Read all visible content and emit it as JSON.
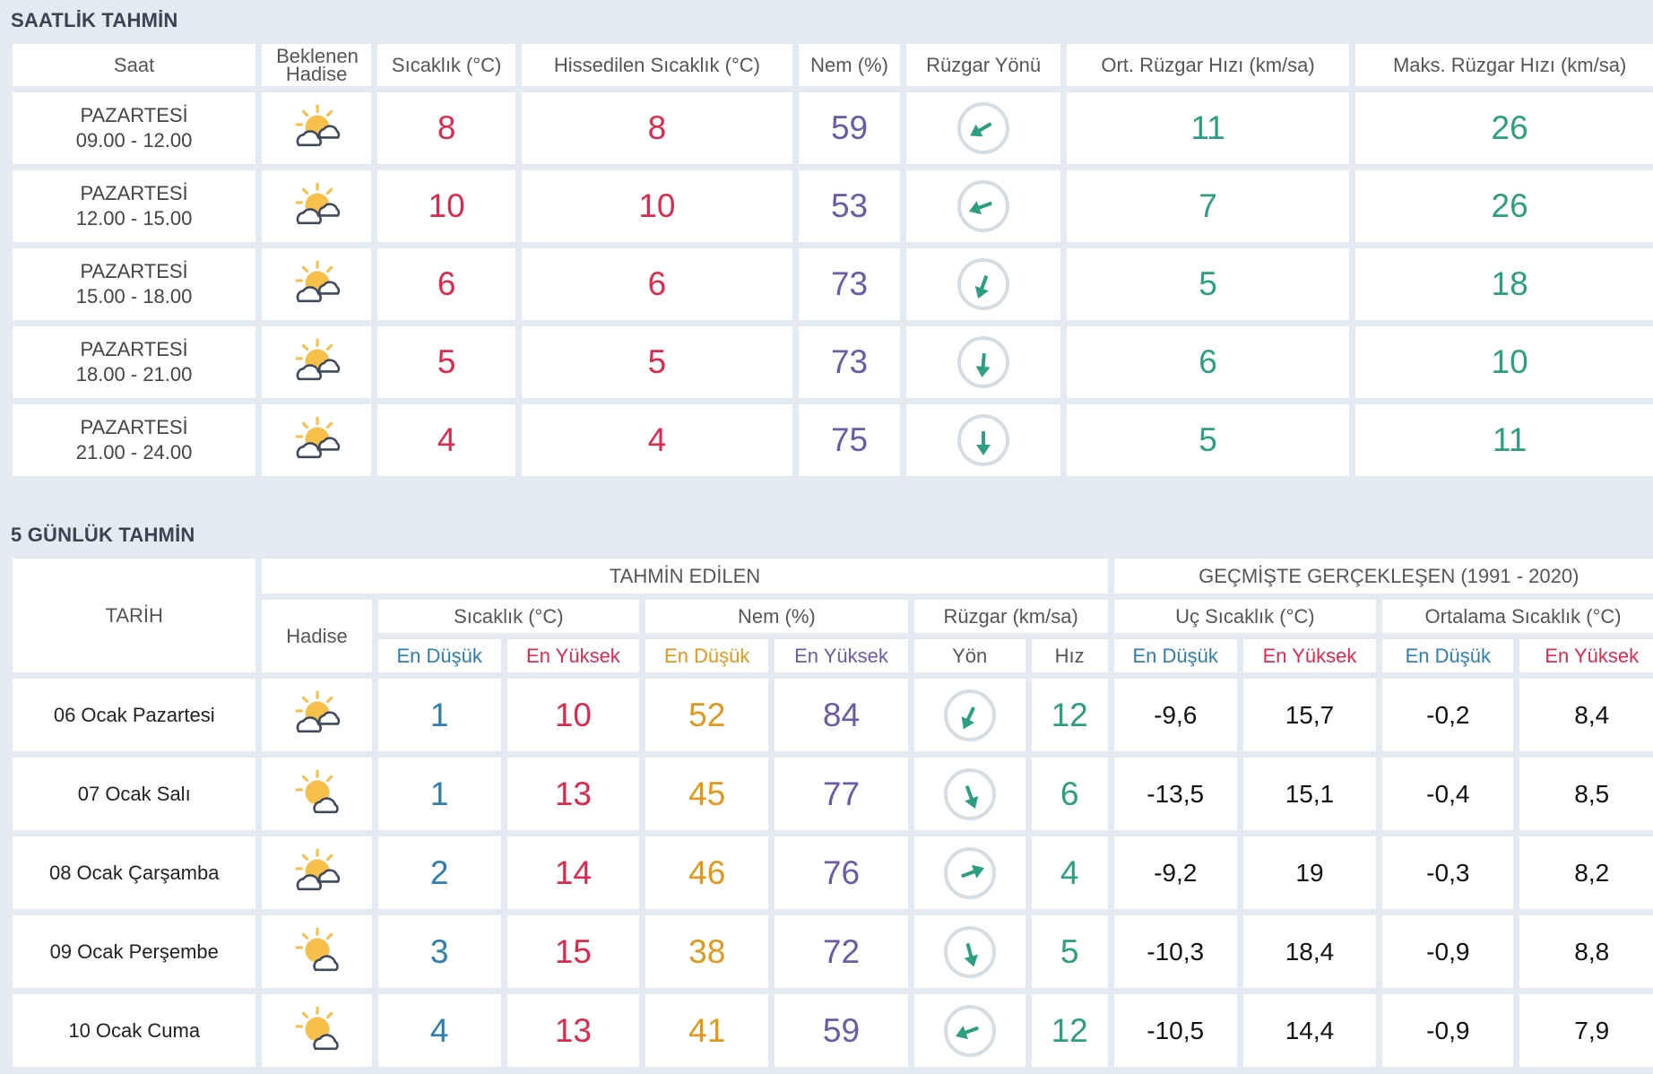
{
  "hourly": {
    "title": "SAATLİK TAHMİN",
    "headers": {
      "saat": "Saat",
      "hadise": "Beklenen Hadise",
      "sicaklik": "Sıcaklık (°C)",
      "hissedilen": "Hissedilen Sıcaklık (°C)",
      "nem": "Nem (%)",
      "ruzgar_yonu": "Rüzgar Yönü",
      "ort_ruzgar": "Ort. Rüzgar Hızı (km/sa)",
      "maks_ruzgar": "Maks. Rüzgar Hızı (km/sa)"
    },
    "rows": [
      {
        "day": "PAZARTESİ",
        "time": "09.00 - 12.00",
        "icon": "partly-cloudy-icon",
        "temp": "8",
        "feels": "8",
        "humidity": "59",
        "wind_dir_deg": 240,
        "wind_avg": "11",
        "wind_max": "26"
      },
      {
        "day": "PAZARTESİ",
        "time": "12.00 - 15.00",
        "icon": "partly-cloudy-icon",
        "temp": "10",
        "feels": "10",
        "humidity": "53",
        "wind_dir_deg": 250,
        "wind_avg": "7",
        "wind_max": "26"
      },
      {
        "day": "PAZARTESİ",
        "time": "15.00 - 18.00",
        "icon": "partly-cloudy-icon",
        "temp": "6",
        "feels": "6",
        "humidity": "73",
        "wind_dir_deg": 200,
        "wind_avg": "5",
        "wind_max": "18"
      },
      {
        "day": "PAZARTESİ",
        "time": "18.00 - 21.00",
        "icon": "partly-cloudy-icon",
        "temp": "5",
        "feels": "5",
        "humidity": "73",
        "wind_dir_deg": 185,
        "wind_avg": "6",
        "wind_max": "10"
      },
      {
        "day": "PAZARTESİ",
        "time": "21.00 - 24.00",
        "icon": "partly-cloudy-icon",
        "temp": "4",
        "feels": "4",
        "humidity": "75",
        "wind_dir_deg": 180,
        "wind_avg": "5",
        "wind_max": "11"
      }
    ]
  },
  "daily": {
    "title": "5 GÜNLÜK TAHMİN",
    "headers": {
      "tarih": "TARİH",
      "tahmin": "TAHMİN EDİLEN",
      "gecmis": "GEÇMİŞTE GERÇEKLEŞEN (1991 - 2020)",
      "hadise": "Hadise",
      "sicaklik": "Sıcaklık (°C)",
      "nem": "Nem (%)",
      "ruzgar": "Rüzgar (km/sa)",
      "uc_sicaklik": "Uç Sıcaklık (°C)",
      "ort_sicaklik": "Ortalama Sıcaklık (°C)",
      "en_dusuk": "En Düşük",
      "en_yuksek": "En Yüksek",
      "yon": "Yön",
      "hiz": "Hız"
    },
    "rows": [
      {
        "date": "06 Ocak Pazartesi",
        "icon": "partly-cloudy-icon",
        "tmin": "1",
        "tmax": "10",
        "hmin": "52",
        "hmax": "84",
        "wind_dir_deg": 205,
        "wind_speed": "12",
        "uc_min": "-9,6",
        "uc_max": "15,7",
        "ort_min": "-0,2",
        "ort_max": "8,4"
      },
      {
        "date": "07 Ocak Salı",
        "icon": "sun-cloud-icon",
        "tmin": "1",
        "tmax": "13",
        "hmin": "45",
        "hmax": "77",
        "wind_dir_deg": 160,
        "wind_speed": "6",
        "uc_min": "-13,5",
        "uc_max": "15,1",
        "ort_min": "-0,4",
        "ort_max": "8,5"
      },
      {
        "date": "08 Ocak Çarşamba",
        "icon": "partly-cloudy-icon",
        "tmin": "2",
        "tmax": "14",
        "hmin": "46",
        "hmax": "76",
        "wind_dir_deg": 70,
        "wind_speed": "4",
        "uc_min": "-9,2",
        "uc_max": "19",
        "ort_min": "-0,3",
        "ort_max": "8,2"
      },
      {
        "date": "09 Ocak Perşembe",
        "icon": "sun-cloud-icon",
        "tmin": "3",
        "tmax": "15",
        "hmin": "38",
        "hmax": "72",
        "wind_dir_deg": 165,
        "wind_speed": "5",
        "uc_min": "-10,3",
        "uc_max": "18,4",
        "ort_min": "-0,9",
        "ort_max": "8,8"
      },
      {
        "date": "10 Ocak Cuma",
        "icon": "sun-cloud-icon",
        "tmin": "4",
        "tmax": "13",
        "hmin": "41",
        "hmax": "59",
        "wind_dir_deg": 250,
        "wind_speed": "12",
        "uc_min": "-10,5",
        "uc_max": "14,4",
        "ort_min": "-0,9",
        "ort_max": "7,9"
      }
    ]
  },
  "colors": {
    "temp": "#dc2a4f",
    "humidity": "#6b5ba6",
    "wind": "#2c9f82",
    "min": "#2d7fad",
    "hum_min": "#e0971c"
  }
}
